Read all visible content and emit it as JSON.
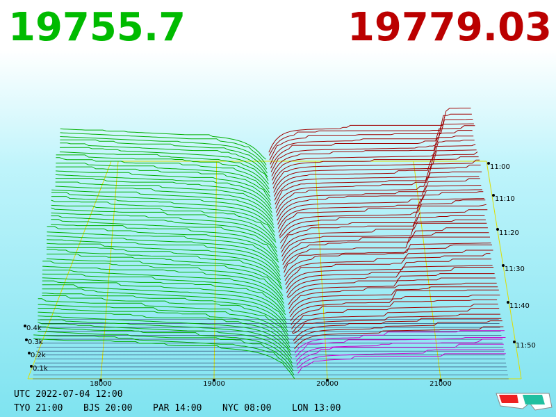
{
  "bid_price": "19755.7",
  "ask_price": "19779.03",
  "price_axis": [
    "18000",
    "19000",
    "20000",
    "21000"
  ],
  "depth_axis": [
    "0.4k",
    "0.3k",
    "0.2k",
    "0.1k"
  ],
  "time_axis": [
    "11:00",
    "11:10",
    "11:20",
    "11:30",
    "11:40",
    "11:50"
  ],
  "utc": "UTC 2022-07-04 12:00",
  "clocks": [
    "TYO 21:00",
    "BJS 20:00",
    "PAR 14:00",
    "NYC 08:00",
    "LON 13:00"
  ]
}
